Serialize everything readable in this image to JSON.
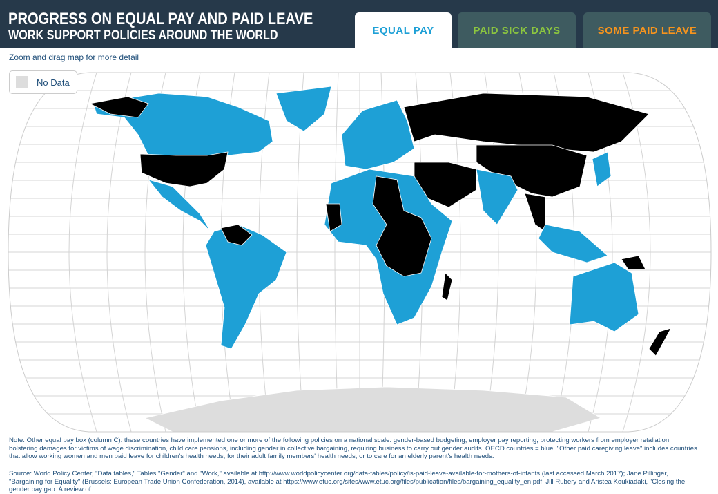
{
  "header": {
    "title": "PROGRESS ON EQUAL PAY AND PAID LEAVE",
    "subtitle": "WORK SUPPORT POLICIES AROUND THE WORLD"
  },
  "tabs": [
    "EQUAL PAY",
    "PAID SICK DAYS",
    "SOME PAID LEAVE"
  ],
  "hint": "Zoom and drag map for more detail",
  "legend": {
    "items": [
      "No Data"
    ]
  },
  "note": "Note: Other equal pay box (column C): these countries have implemented one or more of the following policies on a national scale: gender-based budgeting, employer pay reporting, protecting workers from employer retaliation, bolstering damages for victims of wage discrimination, child care pensions, including gender in collective bargaining, requiring business to carry out gender audits. OECD countries = blue. \"Other paid caregiving leave\" includes countries that allow working women and men paid leave for children's health needs, for their adult family members' health needs, or to care for an elderly parent's health needs.",
  "source": "Source: World Policy Center, \"Data tables,\" Tables \"Gender\" and \"Work,\" available at http://www.worldpolicycenter.org/data-tables/policy/is-paid-leave-available-for-mothers-of-infants (last accessed March 2017); Jane Pillinger, \"Bargaining for Equality\" (Brussels: European Trade Union Confederation, 2014), available at https://www.etuc.org/sites/www.etuc.org/files/publication/files/bargaining_equality_en.pdf; Jill Rubery and Aristea Koukiadaki, \"Closing the gender pay gap: A review of"
}
